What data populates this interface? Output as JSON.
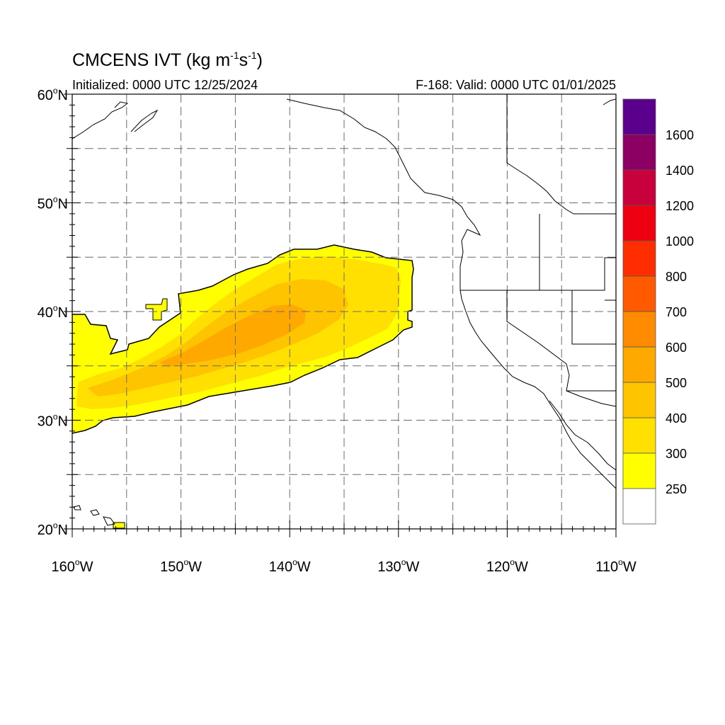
{
  "title": {
    "main": "CMCENS IVT (kg m",
    "exp1": "-1",
    "mid": "s",
    "exp2": "-1",
    "end": ")"
  },
  "initialized": "Initialized: 0000 UTC 12/25/2024",
  "valid": "F-168: Valid: 0000 UTC 01/01/2025",
  "map": {
    "lon_range": [
      -160,
      -110
    ],
    "lat_range": [
      20,
      60
    ],
    "lat_labels": [
      {
        "lat": 60,
        "text": "60"
      },
      {
        "lat": 50,
        "text": "50"
      },
      {
        "lat": 40,
        "text": "40"
      },
      {
        "lat": 30,
        "text": "30"
      },
      {
        "lat": 20,
        "text": "20"
      }
    ],
    "lon_labels": [
      {
        "lon": -160,
        "text": "160"
      },
      {
        "lon": -150,
        "text": "150"
      },
      {
        "lon": -140,
        "text": "140"
      },
      {
        "lon": -130,
        "text": "130"
      },
      {
        "lon": -120,
        "text": "120"
      },
      {
        "lon": -110,
        "text": "110"
      }
    ],
    "lat_suffix": "N",
    "lon_suffix": "W",
    "degree": "o",
    "grid_lats": [
      25,
      30,
      35,
      40,
      45,
      50,
      55
    ],
    "grid_lons": [
      -155,
      -150,
      -145,
      -140,
      -135,
      -130,
      -125,
      -120,
      -115
    ]
  },
  "colorbar": {
    "levels": [
      "250",
      "300",
      "400",
      "500",
      "600",
      "700",
      "800",
      "1000",
      "1200",
      "1400",
      "1600"
    ],
    "colors": [
      "#ffffff",
      "#ffff00",
      "#ffe000",
      "#ffc400",
      "#ffa800",
      "#ff8c00",
      "#ff5a00",
      "#ff2e00",
      "#ee0010",
      "#c8003c",
      "#8c0064",
      "#5a008c"
    ]
  }
}
